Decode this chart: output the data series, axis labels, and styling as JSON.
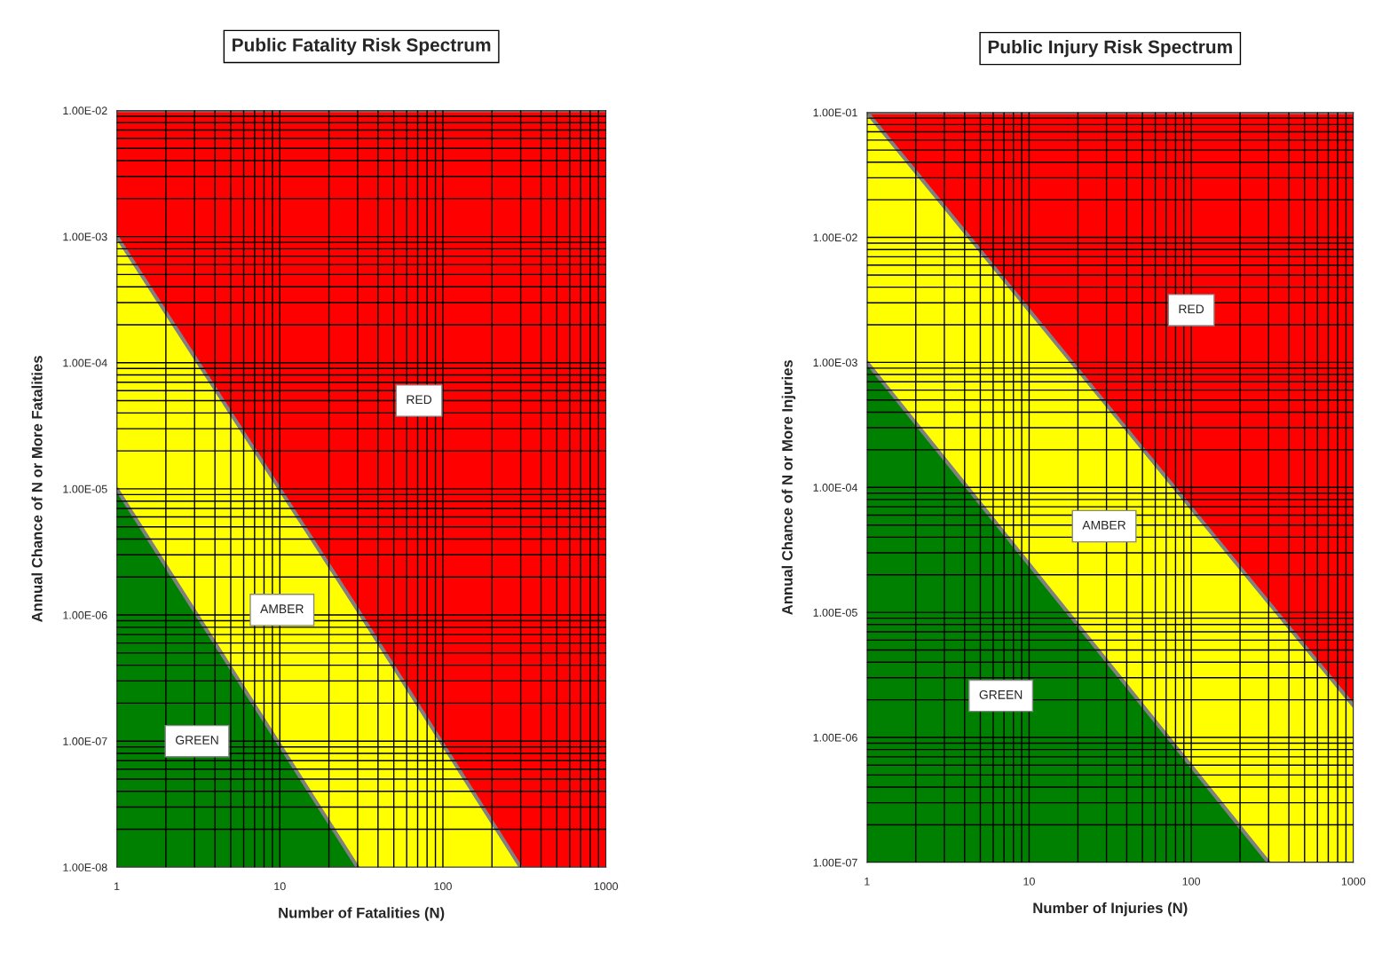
{
  "chart_data": [
    {
      "type": "area",
      "title": "Public Fatality Risk Spectrum",
      "xlabel": "Number of Fatalities (N)",
      "ylabel": "Annual Chance of N or More Fatalities",
      "log": "xy",
      "grid": true,
      "xlim": [
        1,
        1000
      ],
      "xticks": [
        1,
        10,
        100,
        1000
      ],
      "ylim": [
        1e-08,
        0.01
      ],
      "yticks": [
        {
          "value": 1e-08,
          "label": "1.00E-08"
        },
        {
          "value": 1e-07,
          "label": "1.00E-07"
        },
        {
          "value": 1e-06,
          "label": "1.00E-06"
        },
        {
          "value": 1e-05,
          "label": "1.00E-05"
        },
        {
          "value": 0.0001,
          "label": "1.00E-04"
        },
        {
          "value": 0.001,
          "label": "1.00E-03"
        },
        {
          "value": 0.01,
          "label": "1.00E-02"
        }
      ],
      "series": [
        {
          "name": "GREEN",
          "color": "#008000",
          "x": [
            1,
            30
          ],
          "values": [
            1e-05,
            1e-08
          ]
        },
        {
          "name": "AMBER",
          "color": "#ffff00",
          "x": [
            1,
            30,
            300
          ],
          "values": [
            0.001,
            1.1e-06,
            1e-08
          ]
        },
        {
          "name": "RED",
          "color": "#ff0000",
          "x": [
            1,
            300,
            1000
          ],
          "values": [
            0.01,
            0.01,
            0.01
          ]
        }
      ]
    },
    {
      "type": "area",
      "title": "Public Injury Risk Spectrum",
      "xlabel": "Number of Injuries (N)",
      "ylabel": "Annual Chance of N or More Injuries",
      "log": "xy",
      "grid": true,
      "xlim": [
        1,
        1000
      ],
      "xticks": [
        1,
        10,
        100,
        1000
      ],
      "ylim": [
        1e-07,
        0.1
      ],
      "yticks": [
        {
          "value": 1e-07,
          "label": "1.00E-07"
        },
        {
          "value": 1e-06,
          "label": "1.00E-06"
        },
        {
          "value": 1e-05,
          "label": "1.00E-05"
        },
        {
          "value": 0.0001,
          "label": "1.00E-04"
        },
        {
          "value": 0.001,
          "label": "1.00E-03"
        },
        {
          "value": 0.01,
          "label": "1.00E-02"
        },
        {
          "value": 0.1,
          "label": "1.00E-01"
        }
      ],
      "series": [
        {
          "name": "GREEN",
          "color": "#008000",
          "x": [
            1,
            300
          ],
          "values": [
            0.001,
            1e-07
          ]
        },
        {
          "name": "AMBER",
          "color": "#ffff00",
          "x": [
            1,
            300,
            1000
          ],
          "values": [
            0.1,
            1.2e-05,
            1.8e-06
          ]
        },
        {
          "name": "RED",
          "color": "#ff0000",
          "x": [
            1,
            1000
          ],
          "values": [
            0.1,
            0.1
          ]
        }
      ]
    }
  ]
}
